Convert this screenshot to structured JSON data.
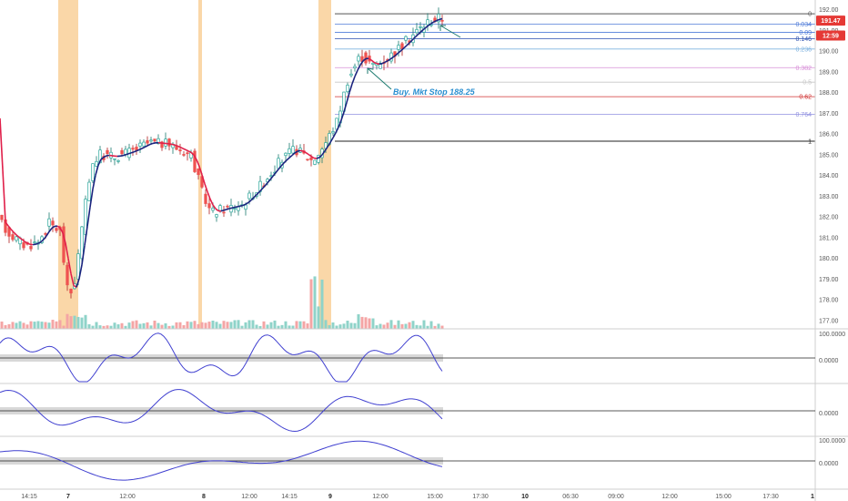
{
  "chart_data": {
    "type": "candlestick",
    "price_axis": {
      "ticks": [
        "192.00",
        "191.00",
        "190.00",
        "189.00",
        "188.00",
        "187.00",
        "186.00",
        "185.00",
        "184.00",
        "183.00",
        "182.00",
        "181.00",
        "180.00",
        "179.00",
        "178.00",
        "177.00"
      ],
      "range": [
        176.6,
        192.2
      ]
    },
    "x_ticks": [
      {
        "label": "14:15",
        "bold": false
      },
      {
        "label": "7",
        "bold": true
      },
      {
        "label": "12:00",
        "bold": false
      },
      {
        "label": "8",
        "bold": true
      },
      {
        "label": "12:00",
        "bold": false
      },
      {
        "label": "14:15",
        "bold": false
      },
      {
        "label": "9",
        "bold": true
      },
      {
        "label": "12:00",
        "bold": false
      },
      {
        "label": "15:00",
        "bold": false
      },
      {
        "label": "17:30",
        "bold": false
      },
      {
        "label": "10",
        "bold": true
      },
      {
        "label": "06:30",
        "bold": false
      },
      {
        "label": "09:00",
        "bold": false
      },
      {
        "label": "12:00",
        "bold": false
      },
      {
        "label": "15:00",
        "bold": false
      },
      {
        "label": "17:30",
        "bold": false
      },
      {
        "label": "1",
        "bold": true
      }
    ],
    "price_badges": [
      {
        "label": "191.47",
        "price": 191.47
      },
      {
        "label": "12:59",
        "price": 191.1
      }
    ],
    "fib_levels": [
      {
        "label": "0",
        "price": 191.8,
        "color": "#555555"
      },
      {
        "label": "0.034",
        "price": 191.3,
        "color": "#4f7bd9"
      },
      {
        "label": "0.09",
        "price": 190.9,
        "color": "#4f7bd9"
      },
      {
        "label": "0.146",
        "price": 190.6,
        "color": "#2a4fb0"
      },
      {
        "label": "0.236",
        "price": 190.1,
        "color": "#7fb3e0"
      },
      {
        "label": "0.382",
        "price": 189.2,
        "color": "#d890d8"
      },
      {
        "label": "0.5",
        "price": 188.5,
        "color": "#c8c8c8"
      },
      {
        "label": "0.62",
        "price": 187.8,
        "color": "#d03030"
      },
      {
        "label": "0.764",
        "price": 186.95,
        "color": "#9090e0"
      },
      {
        "label": "1",
        "price": 185.65,
        "color": "#222222"
      }
    ],
    "annotation": "Buy. Mkt Stop 188.25",
    "oscillators": [
      {
        "label": "100.0000",
        "label2": "0.0000"
      },
      {
        "label": "0.0000"
      },
      {
        "label": "100.0000",
        "label2": "0.0000"
      }
    ],
    "colors": {
      "up": "#26a69a",
      "down": "#ef5350",
      "ma_up": "#1a237e",
      "ma_down": "#e0204a",
      "session": "#fad7a8",
      "osc": "#4040d0",
      "badge": "#e53935"
    }
  }
}
